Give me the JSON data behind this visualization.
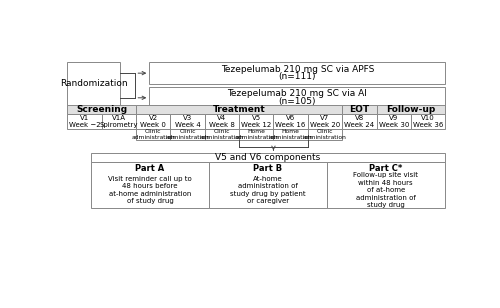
{
  "randomization_label": "Randomization",
  "arm1_line1": "Tezepelumab 210 mg SC via APFS",
  "arm1_line2": "(n=111)",
  "arm2_line1": "Tezepelumab 210 mg SC via AI",
  "arm2_line2": "(n=105)",
  "phase_headers": [
    "Screening",
    "Treatment",
    "EOT",
    "Follow-up"
  ],
  "visits": [
    "V1\nWeek −2",
    "V1A\nSpirometry",
    "V2\nWeek 0",
    "V3\nWeek 4",
    "V4\nWeek 8",
    "V5\nWeek 12",
    "V6\nWeek 16",
    "V7\nWeek 20",
    "V8\nWeek 24",
    "V9\nWeek 30",
    "V10\nWeek 36"
  ],
  "admin_labels": [
    "Clinic\nadministration",
    "Clinic\nadministration",
    "Clinic\nadministration",
    "Home\nadministration",
    "Home\nadministration",
    "Clinic\nadministration"
  ],
  "v5v6_header": "V5 and V6 components",
  "parts": [
    {
      "title": "Part A",
      "body": "Visit reminder call up to\n48 hours before\nat-home administration\nof study drug"
    },
    {
      "title": "Part B",
      "body": "At-home\nadministration of\nstudy drug by patient\nor caregiver"
    },
    {
      "title": "Part C*",
      "body": "Follow-up site visit\nwithin 48 hours\nof at-home\nadministration of\nstudy drug"
    }
  ],
  "bg_color": "#ffffff",
  "ec": "#888888",
  "header_bg": "#e0e0e0"
}
